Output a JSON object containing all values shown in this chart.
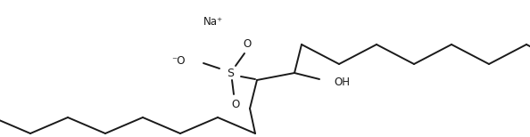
{
  "background_color": "#ffffff",
  "line_color": "#1a1a1a",
  "line_width": 1.4,
  "figsize": [
    5.94,
    1.54
  ],
  "dpi": 100,
  "na_label": "Na⁺",
  "na_fontsize": 8.5,
  "S_label": "S",
  "O_minus_label": "⁻O",
  "O_label": "O",
  "OH_label": "OH",
  "S_fontsize": 9,
  "O_fontsize": 8.5,
  "OH_fontsize": 8.5
}
